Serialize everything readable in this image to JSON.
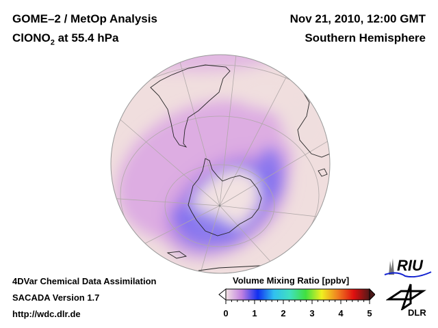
{
  "header": {
    "title_line1": "GOME–2 / MetOp Analysis",
    "title_line2_main": "ClONO",
    "title_line2_sub": "2",
    "title_line2_rest": " at 55.4 hPa",
    "date": "Nov 21, 2010, 12:00 GMT",
    "hemisphere": "Southern Hemisphere"
  },
  "footer": {
    "line1": "4DVar Chemical Data Assimilation",
    "line2": "SACADA Version 1.7",
    "line3": "http://wdc.dlr.de"
  },
  "colorbar": {
    "title": "Volume Mixing Ratio [ppbv]",
    "ticks": [
      "0",
      "1",
      "2",
      "3",
      "4",
      "5"
    ],
    "range": [
      0,
      5
    ],
    "colors": [
      "#f4e4e4",
      "#c080e0",
      "#1030f0",
      "#30c0f0",
      "#40e0c0",
      "#40e040",
      "#f0f020",
      "#f08020",
      "#e01010",
      "#501818"
    ]
  },
  "logos": {
    "riu": "RIU",
    "dlr": "DLR"
  },
  "map": {
    "projection": "orthographic",
    "field_color_low": "#f0dede",
    "field_color_mid": "#d890e0",
    "field_color_high": "#8070f0"
  }
}
